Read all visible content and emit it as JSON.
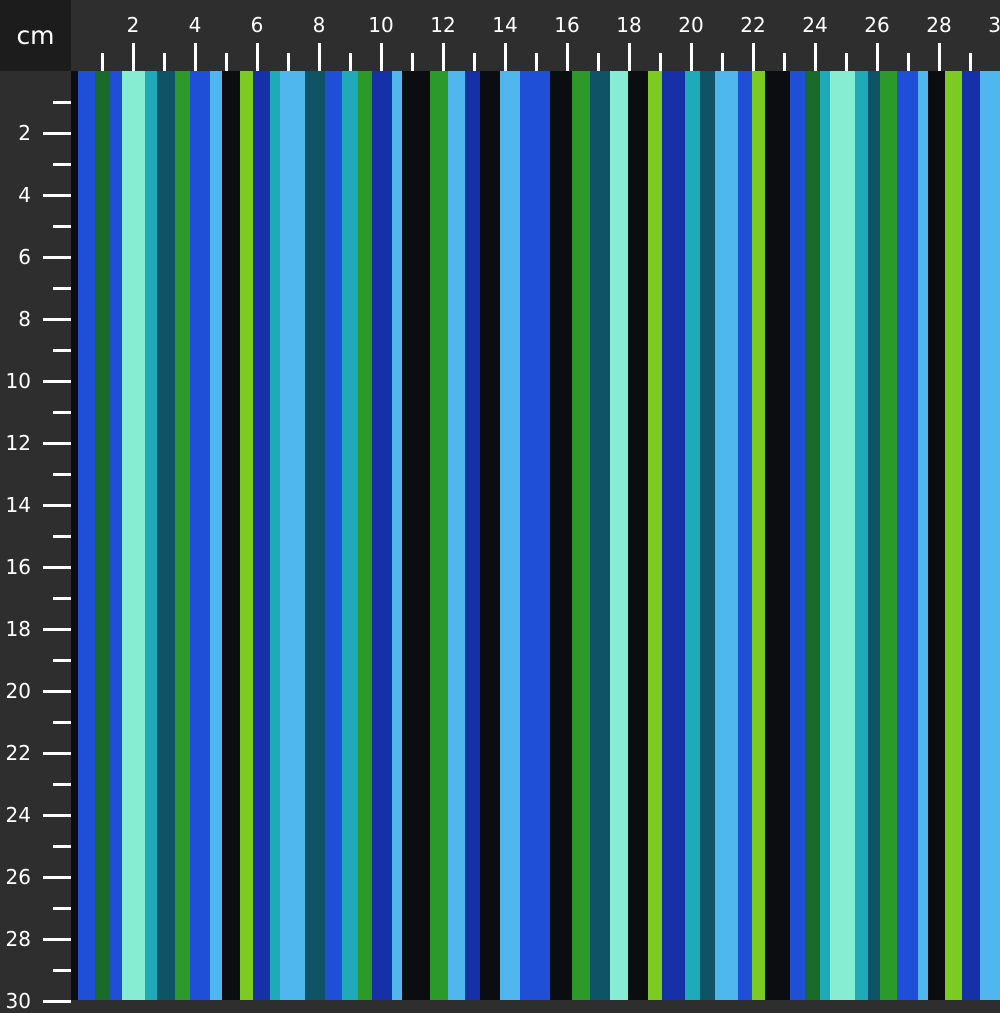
{
  "ruler": {
    "unit": "cm",
    "px_per_unit_note": "",
    "top_labels": [
      "2",
      "4",
      "6",
      "8",
      "10",
      "12",
      "14",
      "16",
      "18",
      "20",
      "22",
      "24",
      "26",
      "28",
      "30"
    ],
    "left_labels": [
      "2",
      "4",
      "6",
      "8",
      "10",
      "12",
      "14",
      "16",
      "18",
      "20",
      "22",
      "24",
      "26",
      "28",
      "30"
    ]
  },
  "fabric": {
    "pattern": "vertical painted stripes",
    "palette": {
      "black": "#0c0d10",
      "blue": "#1f4fd6",
      "dark_blue": "#1630a8",
      "dark_green": "#1a6b2a",
      "green": "#2c9a2a",
      "lime": "#7ccb22",
      "mint": "#86ecd2",
      "teal": "#1eaab8",
      "dark_teal": "#0f5466",
      "light_blue": "#4fb6ee"
    }
  }
}
